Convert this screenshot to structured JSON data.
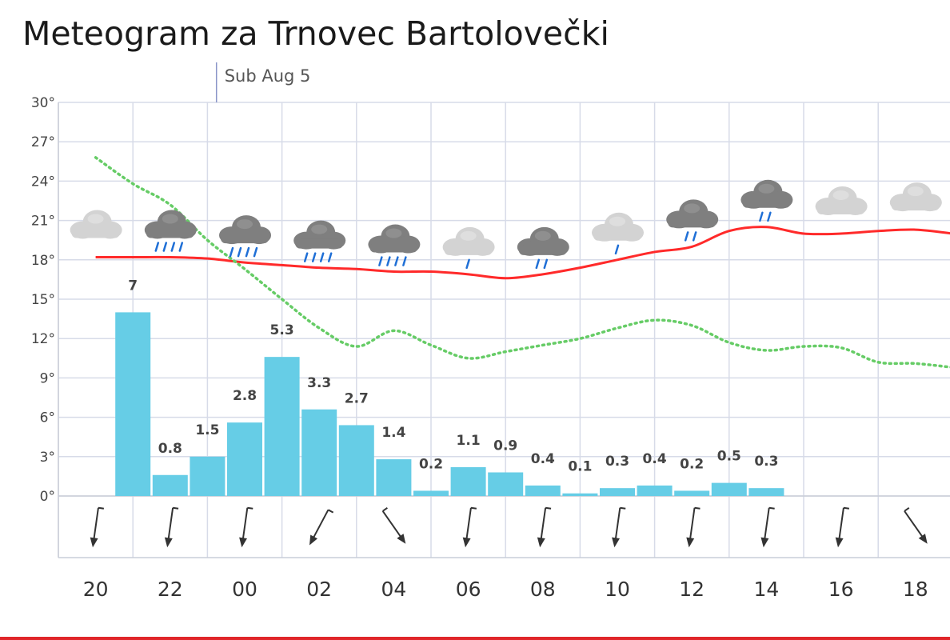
{
  "title": "Meteogram za Trnovec Bartolovečki",
  "day_label": "Sub Aug 5",
  "colors": {
    "temperature": "#ff2a2a",
    "dewpoint": "#66cc66",
    "precipitation": "#66cde6",
    "grid": "#d7dbe8",
    "rain": "#1f6fd6"
  },
  "chart_data": {
    "type": "line",
    "ylim": [
      0,
      30
    ],
    "ytick_labels": [
      "0°",
      "3°",
      "6°",
      "9°",
      "12°",
      "15°",
      "18°",
      "21°",
      "24°",
      "27°",
      "30°"
    ],
    "xtick_labels": [
      "20",
      "22",
      "00",
      "02",
      "04",
      "06",
      "08",
      "10",
      "12",
      "14",
      "16",
      "18"
    ],
    "grid": true,
    "series": [
      {
        "key": "temperature",
        "x": [
          20,
          21,
          22,
          23,
          24,
          25,
          26,
          27,
          28,
          29,
          30,
          31,
          32,
          33,
          34,
          35,
          36,
          37,
          38,
          39,
          40,
          41,
          42,
          43
        ],
        "values": [
          18.2,
          18.2,
          18.2,
          18.1,
          17.8,
          17.6,
          17.4,
          17.3,
          17.1,
          17.1,
          16.9,
          16.6,
          16.9,
          17.4,
          18.0,
          18.6,
          19.0,
          20.2,
          20.5,
          20.0,
          20.0,
          20.2,
          20.3,
          20.0
        ]
      },
      {
        "key": "dewpoint",
        "x": [
          20,
          21,
          22,
          23,
          24,
          25,
          26,
          27,
          28,
          29,
          30,
          31,
          32,
          33,
          34,
          35,
          36,
          37,
          38,
          39,
          40,
          41,
          42,
          43
        ],
        "values": [
          25.8,
          23.8,
          22.2,
          19.5,
          17.3,
          15.0,
          12.8,
          11.4,
          12.6,
          11.5,
          10.5,
          11.0,
          11.5,
          12.0,
          12.8,
          13.4,
          13.0,
          11.7,
          11.1,
          11.4,
          11.3,
          10.2,
          10.1,
          9.8
        ]
      }
    ],
    "precipitation": {
      "x": [
        20,
        21,
        22,
        23,
        24,
        25,
        26,
        27,
        28,
        29,
        30,
        31,
        32,
        33,
        34,
        35,
        36,
        37,
        38,
        39,
        40,
        41,
        42,
        43
      ],
      "values": [
        0,
        7,
        0.8,
        1.5,
        2.8,
        5.3,
        3.3,
        2.7,
        1.4,
        0.2,
        1.1,
        0.9,
        0.4,
        0.1,
        0.3,
        0.4,
        0.2,
        0.5,
        0.3,
        0,
        0,
        0,
        0,
        0
      ],
      "labels": [
        "",
        "7",
        "0.8",
        "1.5",
        "2.8",
        "5.3",
        "3.3",
        "2.7",
        "1.4",
        "0.2",
        "1.1",
        "0.9",
        "0.4",
        "0.1",
        "0.3",
        "0.4",
        "0.2",
        "0.5",
        "0.3",
        "",
        "",
        "",
        "",
        ""
      ]
    },
    "weather_icons": [
      {
        "x": 20,
        "icon": "light-cloud-icon",
        "rain": 0
      },
      {
        "x": 22,
        "icon": "dark-cloud-rain-icon",
        "rain": 4
      },
      {
        "x": 24,
        "icon": "dark-cloud-rain-icon",
        "rain": 4
      },
      {
        "x": 26,
        "icon": "dark-cloud-rain-icon",
        "rain": 4
      },
      {
        "x": 28,
        "icon": "dark-cloud-rain-icon",
        "rain": 4
      },
      {
        "x": 30,
        "icon": "light-cloud-rain-icon",
        "rain": 1
      },
      {
        "x": 32,
        "icon": "dark-cloud-rain-icon",
        "rain": 2
      },
      {
        "x": 34,
        "icon": "light-cloud-rain-icon",
        "rain": 1
      },
      {
        "x": 36,
        "icon": "dark-cloud-rain-icon",
        "rain": 2
      },
      {
        "x": 38,
        "icon": "dark-cloud-rain-icon",
        "rain": 2
      },
      {
        "x": 40,
        "icon": "light-cloud-icon",
        "rain": 0
      },
      {
        "x": 42,
        "icon": "light-cloud-icon",
        "rain": 0
      }
    ],
    "wind_arrows": [
      {
        "x": 20,
        "icon": "wind-arrow-s-icon"
      },
      {
        "x": 22,
        "icon": "wind-arrow-s-icon"
      },
      {
        "x": 24,
        "icon": "wind-arrow-s-icon"
      },
      {
        "x": 26,
        "icon": "wind-arrow-sw-icon"
      },
      {
        "x": 28,
        "icon": "wind-arrow-se-icon"
      },
      {
        "x": 30,
        "icon": "wind-arrow-s-icon"
      },
      {
        "x": 32,
        "icon": "wind-arrow-s-icon"
      },
      {
        "x": 34,
        "icon": "wind-arrow-s-icon"
      },
      {
        "x": 36,
        "icon": "wind-arrow-s-icon"
      },
      {
        "x": 38,
        "icon": "wind-arrow-s-icon"
      },
      {
        "x": 40,
        "icon": "wind-arrow-s-icon"
      },
      {
        "x": 42,
        "icon": "wind-arrow-se-icon"
      }
    ]
  }
}
